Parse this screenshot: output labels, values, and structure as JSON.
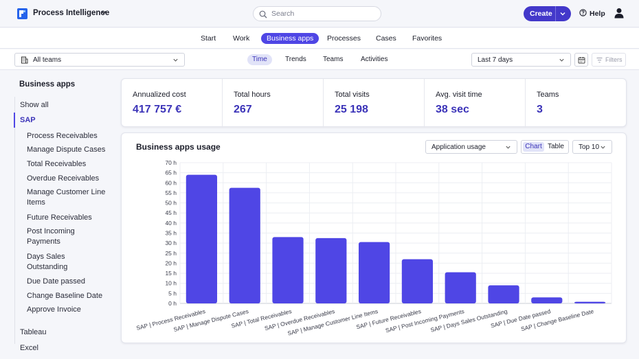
{
  "app": {
    "title": "Process Intelligence"
  },
  "search": {
    "placeholder": "Search"
  },
  "header": {
    "create_label": "Create",
    "help_label": "Help"
  },
  "nav": {
    "tabs": [
      {
        "label": "Start"
      },
      {
        "label": "Work"
      },
      {
        "label": "Business apps",
        "active": true
      },
      {
        "label": "Processes"
      },
      {
        "label": "Cases"
      },
      {
        "label": "Favorites"
      }
    ]
  },
  "filters": {
    "team_select": "All teams",
    "subtabs": [
      {
        "label": "Time",
        "active": true
      },
      {
        "label": "Trends"
      },
      {
        "label": "Teams"
      },
      {
        "label": "Activities"
      }
    ],
    "date_range": "Last 7 days",
    "filters_label": "Filters"
  },
  "sidebar": {
    "title": "Business apps",
    "show_all": "Show all",
    "group_active": "SAP",
    "items": [
      {
        "label": "Process Receivables"
      },
      {
        "label": "Manage Dispute Cases"
      },
      {
        "label": "Total Receivables"
      },
      {
        "label": "Overdue Receivables"
      },
      {
        "label": "Manage Customer Line Items"
      },
      {
        "label": "Future Receivables"
      },
      {
        "label": "Post Incoming Payments"
      },
      {
        "label": "Days Sales Outstanding"
      },
      {
        "label": "Due Date passed"
      },
      {
        "label": "Change Baseline Date"
      },
      {
        "label": "Approve Invoice"
      }
    ],
    "other_groups": [
      {
        "label": "Tableau"
      },
      {
        "label": "Excel"
      }
    ]
  },
  "kpis": [
    {
      "label": "Annualized cost",
      "value": "417 757 €"
    },
    {
      "label": "Total hours",
      "value": "267"
    },
    {
      "label": "Total visits",
      "value": "25 198"
    },
    {
      "label": "Avg. visit time",
      "value": "38 sec"
    },
    {
      "label": "Teams",
      "value": "3"
    }
  ],
  "usage": {
    "title": "Business apps usage",
    "metric_select": "Application usage",
    "view_chart": "Chart",
    "view_table": "Table",
    "top_select": "Top 10"
  },
  "colors": {
    "accent": "#4f46e5",
    "bar": "#4f46e5",
    "brand": "#4338ca"
  },
  "chart_data": {
    "type": "bar",
    "categories": [
      "SAP | Process Receivables",
      "SAP | Manage Dispute Cases",
      "SAP | Total Receivables",
      "SAP | Overdue Receivables",
      "SAP | Manage Customer Line Items",
      "SAP | Future Receivables",
      "SAP | Post Incoming Payments",
      "SAP | Days Sales Outstanding",
      "SAP | Due Date passed",
      "SAP | Change Baseline Date"
    ],
    "values": [
      64,
      57.5,
      33,
      32.5,
      30.5,
      22,
      15.5,
      9,
      3,
      0.8
    ],
    "y_ticks": [
      "0 h",
      "5 h",
      "10 h",
      "15 h",
      "20 h",
      "25 h",
      "30 h",
      "35 h",
      "40 h",
      "45 h",
      "50 h",
      "55 h",
      "60 h",
      "65 h",
      "70 h"
    ],
    "ylim": [
      0,
      70
    ],
    "y_unit": "h",
    "grid": true
  }
}
